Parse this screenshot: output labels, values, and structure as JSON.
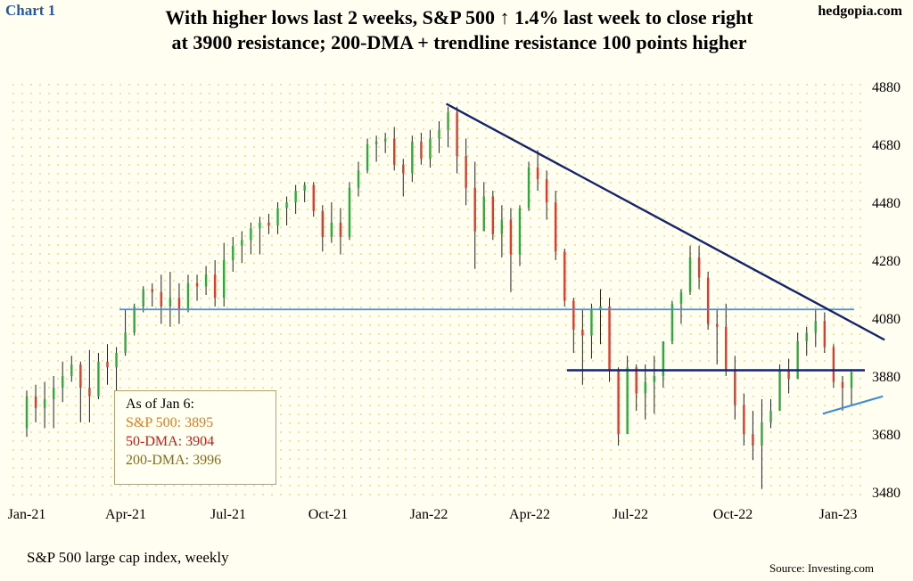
{
  "header": {
    "chart_label": "Chart 1",
    "site": "hedgopia.com",
    "title_line1": "With higher lows last 2 weeks, S&P 500 ↑ 1.4% last week to close right",
    "title_line2": "at 3900 resistance; 200-DMA + trendline resistance 100 points higher"
  },
  "footer": {
    "subtitle": "S&P 500 large cap index, weekly",
    "source": "Source: Investing.com"
  },
  "legend": {
    "heading": "As of Jan 6:",
    "sp500": "S&P 500: 3895",
    "dma50": "50-DMA: 3904",
    "dma200": "200-DMA: 3996",
    "colors": {
      "sp500": "#e07b1e",
      "dma50": "#cc1a10",
      "dma200": "#8a6a20"
    }
  },
  "chart_data": {
    "type": "ohlc",
    "x_ticks": [
      "Jan-21",
      "Apr-21",
      "Jul-21",
      "Oct-21",
      "Jan-22",
      "Apr-22",
      "Jul-22",
      "Oct-22",
      "Jan-23"
    ],
    "y_ticks": [
      3480,
      3680,
      3880,
      4080,
      4280,
      4480,
      4680,
      4880
    ],
    "ylim": [
      3480,
      4880
    ],
    "grid": "dotted",
    "up_color": "#2eaa3c",
    "down_color": "#e03a2a",
    "wick_color": "#222222",
    "bars": [
      [
        3700,
        3830,
        3670,
        3810
      ],
      [
        3810,
        3850,
        3720,
        3770
      ],
      [
        3770,
        3860,
        3700,
        3800
      ],
      [
        3800,
        3880,
        3700,
        3840
      ],
      [
        3840,
        3930,
        3790,
        3880
      ],
      [
        3880,
        3950,
        3860,
        3920
      ],
      [
        3920,
        3930,
        3720,
        3840
      ],
      [
        3840,
        3970,
        3720,
        3810
      ],
      [
        3810,
        3960,
        3800,
        3930
      ],
      [
        3930,
        3990,
        3850,
        3910
      ],
      [
        3910,
        3980,
        3820,
        3960
      ],
      [
        3960,
        4110,
        3950,
        4030
      ],
      [
        4030,
        4130,
        4020,
        4120
      ],
      [
        4120,
        4190,
        4100,
        4180
      ],
      [
        4180,
        4200,
        4120,
        4170
      ],
      [
        4170,
        4230,
        4060,
        4120
      ],
      [
        4120,
        4240,
        4050,
        4150
      ],
      [
        4150,
        4200,
        4060,
        4110
      ],
      [
        4110,
        4230,
        4100,
        4200
      ],
      [
        4200,
        4230,
        4140,
        4190
      ],
      [
        4190,
        4260,
        4160,
        4230
      ],
      [
        4230,
        4280,
        4120,
        4150
      ],
      [
        4150,
        4340,
        4120,
        4280
      ],
      [
        4280,
        4360,
        4240,
        4330
      ],
      [
        4330,
        4380,
        4270,
        4350
      ],
      [
        4350,
        4410,
        4300,
        4390
      ],
      [
        4390,
        4430,
        4300,
        4410
      ],
      [
        4410,
        4440,
        4370,
        4400
      ],
      [
        4400,
        4480,
        4370,
        4460
      ],
      [
        4460,
        4500,
        4400,
        4480
      ],
      [
        4480,
        4540,
        4440,
        4520
      ],
      [
        4520,
        4550,
        4480,
        4540
      ],
      [
        4540,
        4550,
        4430,
        4450
      ],
      [
        4450,
        4470,
        4310,
        4360
      ],
      [
        4360,
        4480,
        4340,
        4410
      ],
      [
        4410,
        4460,
        4300,
        4360
      ],
      [
        4360,
        4550,
        4350,
        4530
      ],
      [
        4530,
        4620,
        4500,
        4590
      ],
      [
        4590,
        4700,
        4580,
        4680
      ],
      [
        4680,
        4710,
        4620,
        4690
      ],
      [
        4690,
        4720,
        4650,
        4700
      ],
      [
        4700,
        4740,
        4590,
        4610
      ],
      [
        4610,
        4630,
        4500,
        4580
      ],
      [
        4580,
        4710,
        4550,
        4690
      ],
      [
        4690,
        4720,
        4610,
        4630
      ],
      [
        4630,
        4730,
        4600,
        4700
      ],
      [
        4700,
        4760,
        4650,
        4730
      ],
      [
        4730,
        4810,
        4670,
        4790
      ],
      [
        4790,
        4810,
        4580,
        4640
      ],
      [
        4640,
        4700,
        4470,
        4530
      ],
      [
        4530,
        4620,
        4250,
        4380
      ],
      [
        4380,
        4550,
        4380,
        4500
      ],
      [
        4500,
        4520,
        4350,
        4370
      ],
      [
        4370,
        4470,
        4290,
        4420
      ],
      [
        4420,
        4460,
        4170,
        4300
      ],
      [
        4300,
        4470,
        4260,
        4460
      ],
      [
        4460,
        4620,
        4450,
        4600
      ],
      [
        4600,
        4660,
        4520,
        4560
      ],
      [
        4560,
        4590,
        4420,
        4480
      ],
      [
        4480,
        4520,
        4280,
        4310
      ],
      [
        4310,
        4320,
        4120,
        4140
      ],
      [
        4140,
        4150,
        3960,
        4040
      ],
      [
        4040,
        4110,
        3850,
        4020
      ],
      [
        4020,
        4130,
        3940,
        4110
      ],
      [
        4110,
        4180,
        3990,
        4120
      ],
      [
        4120,
        4150,
        3860,
        3900
      ],
      [
        3900,
        3910,
        3640,
        3680
      ],
      [
        3680,
        3950,
        3690,
        3910
      ],
      [
        3910,
        3920,
        3760,
        3820
      ],
      [
        3820,
        3920,
        3730,
        3860
      ],
      [
        3860,
        3950,
        3750,
        3880
      ],
      [
        3880,
        4000,
        3840,
        4000
      ],
      [
        4000,
        4140,
        3990,
        4130
      ],
      [
        4130,
        4180,
        4060,
        4170
      ],
      [
        4170,
        4330,
        4160,
        4290
      ],
      [
        4290,
        4330,
        4180,
        4220
      ],
      [
        4220,
        4240,
        4040,
        4060
      ],
      [
        4060,
        4110,
        3920,
        4050
      ],
      [
        4050,
        4130,
        3880,
        3900
      ],
      [
        3900,
        3950,
        3730,
        3780
      ],
      [
        3780,
        3820,
        3640,
        3680
      ],
      [
        3680,
        3760,
        3590,
        3640
      ],
      [
        3640,
        3800,
        3490,
        3720
      ],
      [
        3720,
        3800,
        3700,
        3760
      ],
      [
        3760,
        3920,
        3760,
        3900
      ],
      [
        3900,
        3940,
        3820,
        3870
      ],
      [
        3870,
        4030,
        3870,
        4000
      ],
      [
        4000,
        4050,
        3950,
        4030
      ],
      [
        4030,
        4110,
        3980,
        4070
      ],
      [
        4070,
        4100,
        3960,
        3980
      ],
      [
        3980,
        3990,
        3840,
        3860
      ],
      [
        3860,
        3880,
        3760,
        3840
      ],
      [
        3840,
        3890,
        3780,
        3895
      ]
    ],
    "lines": {
      "resistance_4110": 4110,
      "resistance_3900": 3900,
      "downtrend": {
        "from_week": 47,
        "from_value": 4820,
        "to_week": 95,
        "to_value": 4005
      },
      "rising_lows": {
        "from_week": 89,
        "from_value": 3750,
        "to_week": 95,
        "to_value": 3810
      }
    }
  }
}
